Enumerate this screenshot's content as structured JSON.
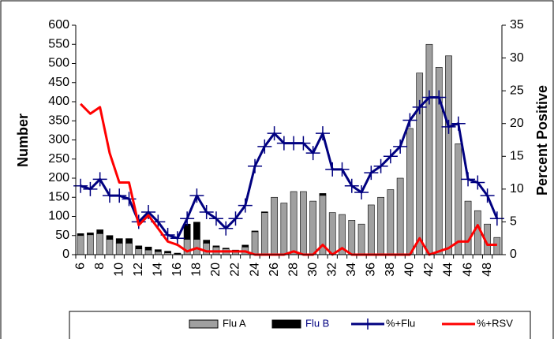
{
  "chart_data": {
    "type": "bar",
    "y_label": "Number",
    "y2_label": "Percent Positive",
    "categories": [
      6,
      null,
      8,
      null,
      10,
      null,
      12,
      null,
      14,
      null,
      16,
      null,
      18,
      null,
      20,
      null,
      22,
      null,
      24,
      null,
      26,
      null,
      28,
      null,
      30,
      null,
      32,
      null,
      34,
      null,
      36,
      null,
      38,
      null,
      40,
      null,
      42,
      null,
      44,
      null,
      46,
      null,
      48,
      null
    ],
    "ylim": [
      0,
      600
    ],
    "yticks": [
      0,
      50,
      100,
      150,
      200,
      250,
      300,
      350,
      400,
      450,
      500,
      550,
      600
    ],
    "y2lim": [
      0,
      35
    ],
    "y2ticks": [
      0,
      5,
      10,
      15,
      20,
      25,
      30,
      35
    ],
    "series": [
      {
        "name": "Flu A",
        "color": "#a0a0a0",
        "values": [
          50,
          52,
          55,
          40,
          30,
          30,
          15,
          12,
          8,
          5,
          2,
          40,
          40,
          30,
          20,
          15,
          10,
          20,
          60,
          110,
          150,
          135,
          165,
          165,
          140,
          155,
          110,
          105,
          90,
          80,
          130,
          150,
          170,
          200,
          330,
          475,
          550,
          490,
          520,
          290,
          140,
          115,
          80,
          45
        ]
      },
      {
        "name": "Flu B",
        "color": "#000000",
        "values": [
          5,
          5,
          10,
          10,
          12,
          12,
          8,
          8,
          5,
          4,
          2,
          40,
          45,
          8,
          3,
          2,
          2,
          5,
          2,
          2,
          0,
          0,
          0,
          0,
          0,
          5,
          0,
          0,
          0,
          0,
          0,
          0,
          0,
          0,
          0,
          0,
          0,
          0,
          0,
          0,
          0,
          0,
          0,
          0
        ]
      },
      {
        "name": "%+Flu",
        "color": "#000080",
        "axis": "y2",
        "marker": "+",
        "values": [
          10.5,
          10,
          11.5,
          9,
          9,
          8.5,
          5,
          6.5,
          5,
          3,
          2.5,
          5.5,
          9,
          6.5,
          5.5,
          4,
          5.5,
          7.5,
          13.5,
          16.5,
          18.5,
          17,
          17,
          17,
          15.5,
          18.5,
          13,
          13,
          10.5,
          9.5,
          12.5,
          13.5,
          15,
          16.5,
          20.5,
          22.5,
          24,
          24,
          19.5,
          20,
          11.5,
          11,
          9,
          5.5
        ]
      },
      {
        "name": "%+RSV",
        "color": "#ff0000",
        "axis": "y2",
        "values": [
          23,
          21.5,
          22.5,
          15.5,
          11,
          11,
          4.5,
          6,
          4,
          2,
          1.5,
          0.5,
          1,
          0.5,
          0.5,
          0.5,
          0.5,
          0.5,
          0,
          0,
          0,
          0,
          0.5,
          0,
          0,
          1.5,
          0,
          1,
          0,
          0,
          0,
          0,
          0,
          0,
          0,
          2.5,
          0,
          0.5,
          1,
          2,
          2,
          4.5,
          1.5,
          1.5
        ]
      }
    ]
  }
}
